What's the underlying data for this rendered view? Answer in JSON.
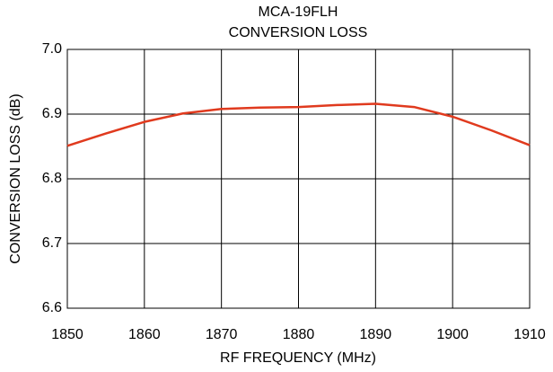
{
  "chart_data": {
    "type": "line",
    "title": "MCA-19FLH",
    "subtitle": "CONVERSION LOSS",
    "x_label": "RF FREQUENCY (MHz)",
    "y_label": "CONVERSION LOSS (dB)",
    "x": [
      1850,
      1855,
      1860,
      1865,
      1870,
      1875,
      1880,
      1885,
      1890,
      1895,
      1900,
      1905,
      1910
    ],
    "series": [
      {
        "name": "CONVERSION LOSS",
        "color": "#e03a1e",
        "values": [
          6.851,
          6.87,
          6.888,
          6.901,
          6.908,
          6.91,
          6.911,
          6.914,
          6.916,
          6.911,
          6.896,
          6.875,
          6.852
        ]
      }
    ],
    "xlim": [
      1850,
      1910
    ],
    "xticks": [
      1850,
      1860,
      1870,
      1880,
      1890,
      1900,
      1910
    ],
    "ylim": [
      6.6,
      7.0
    ],
    "yticks": [
      6.6,
      6.7,
      6.8,
      6.9,
      {
        "value": 7.0,
        "label": "7.0"
      }
    ],
    "grid": true
  }
}
